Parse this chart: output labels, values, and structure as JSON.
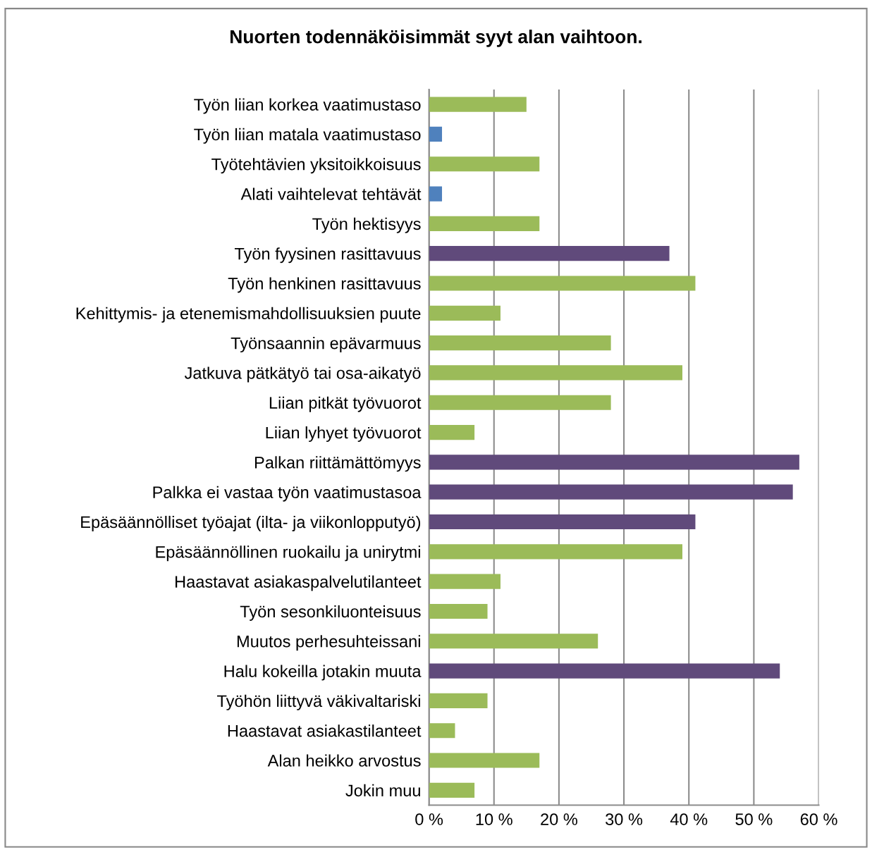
{
  "chart_data": {
    "type": "bar",
    "orientation": "horizontal",
    "title": "Nuorten todennäköisimmät syyt alan vaihtoon.",
    "categories": [
      "Työn liian korkea vaatimustaso",
      "Työn liian matala vaatimustaso",
      "Työtehtävien yksitoikkoisuus",
      "Alati vaihtelevat tehtävät",
      "Työn hektisyys",
      "Työn fyysinen rasittavuus",
      "Työn henkinen rasittavuus",
      "Kehittymis- ja etenemismahdollisuuksien puute",
      "Työnsaannin epävarmuus",
      "Jatkuva pätkätyö tai osa-aikatyö",
      "Liian pitkät työvuorot",
      "Liian lyhyet työvuorot",
      "Palkan riittämättömyys",
      "Palkka ei vastaa työn vaatimustasoa",
      "Epäsäännölliset työajat (ilta- ja viikonlopputyö)",
      "Epäsäännöllinen ruokailu ja unirytmi",
      "Haastavat asiakaspalvelutilanteet",
      "Työn sesonkiluonteisuus",
      "Muutos perhesuhteissani",
      "Halu kokeilla jotakin muuta",
      "Työhön liittyvä väkivaltariski",
      "Haastavat asiakastilanteet",
      "Alan heikko arvostus",
      "Jokin muu"
    ],
    "values": [
      15,
      2,
      17,
      2,
      17,
      37,
      41,
      11,
      28,
      39,
      28,
      7,
      57,
      56,
      41,
      39,
      11,
      9,
      26,
      54,
      9,
      4,
      17,
      7
    ],
    "colors": [
      "#9bbb59",
      "#4f81bd",
      "#9bbb59",
      "#4f81bd",
      "#9bbb59",
      "#604a7b",
      "#9bbb59",
      "#9bbb59",
      "#9bbb59",
      "#9bbb59",
      "#9bbb59",
      "#9bbb59",
      "#604a7b",
      "#604a7b",
      "#604a7b",
      "#9bbb59",
      "#9bbb59",
      "#9bbb59",
      "#9bbb59",
      "#604a7b",
      "#9bbb59",
      "#9bbb59",
      "#9bbb59",
      "#9bbb59"
    ],
    "xlim": [
      0,
      60
    ],
    "xticks": [
      {
        "value": 0,
        "label": "0 %"
      },
      {
        "value": 10,
        "label": "10 %"
      },
      {
        "value": 20,
        "label": "20 %"
      },
      {
        "value": 30,
        "label": "30 %"
      },
      {
        "value": 40,
        "label": "40 %"
      },
      {
        "value": 50,
        "label": "50 %"
      },
      {
        "value": 60,
        "label": "60 %"
      }
    ],
    "grid": "x",
    "legend": false
  }
}
